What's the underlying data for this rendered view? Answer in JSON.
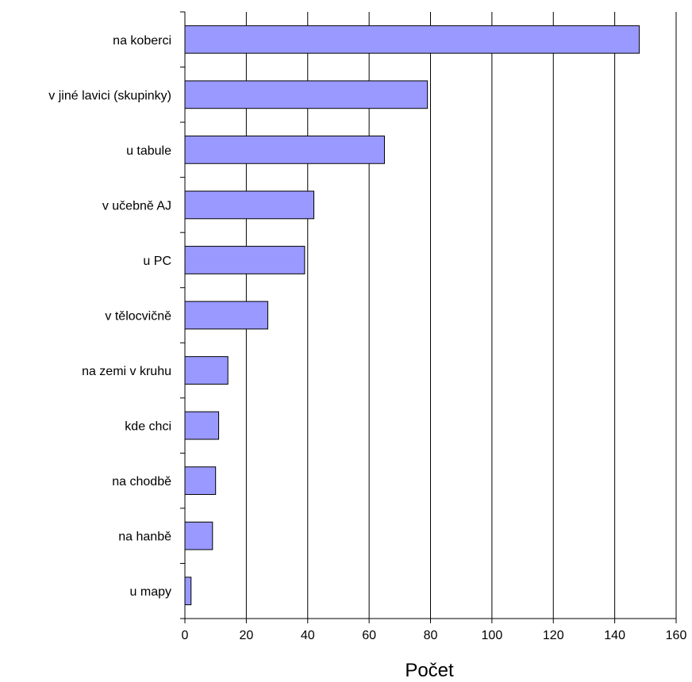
{
  "chart_data": {
    "type": "bar",
    "orientation": "horizontal",
    "categories": [
      "na koberci",
      "v jiné lavici (skupinky)",
      "u tabule",
      "v učebně AJ",
      "u PC",
      "v tělocvičně",
      "na zemi v kruhu",
      "kde chci",
      "na chodbě",
      "na hanbě",
      "u mapy"
    ],
    "values": [
      148,
      79,
      65,
      42,
      39,
      27,
      14,
      11,
      10,
      9,
      2
    ],
    "title": "",
    "xlabel": "Počet",
    "ylabel": "",
    "xlim": [
      0,
      160
    ],
    "xticks": [
      "0",
      "20",
      "40",
      "60",
      "80",
      "100",
      "120",
      "140",
      "160"
    ],
    "grid": "vertical",
    "bar_color": "#9999ff",
    "bar_edge_color": "#000000"
  }
}
